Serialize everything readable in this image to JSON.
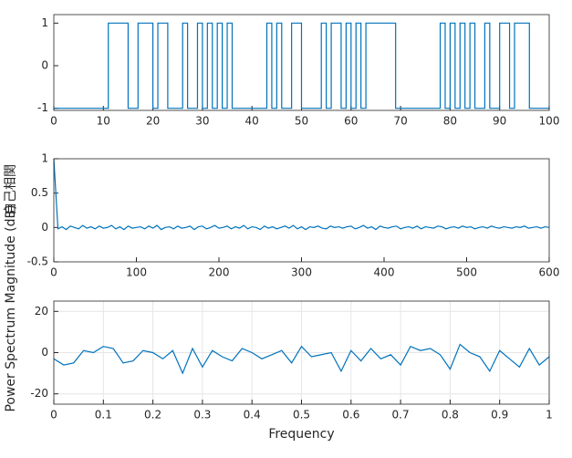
{
  "chart_data": [
    {
      "type": "step",
      "x": [
        0,
        1,
        2,
        3,
        4,
        5,
        6,
        7,
        8,
        9,
        10,
        11,
        12,
        13,
        14,
        15,
        16,
        17,
        18,
        19,
        20,
        21,
        22,
        23,
        24,
        25,
        26,
        27,
        28,
        29,
        30,
        31,
        32,
        33,
        34,
        35,
        36,
        37,
        38,
        39,
        40,
        41,
        42,
        43,
        44,
        45,
        46,
        47,
        48,
        49,
        50,
        51,
        52,
        53,
        54,
        55,
        56,
        57,
        58,
        59,
        60,
        61,
        62,
        63,
        64,
        65,
        66,
        67,
        68,
        69,
        70,
        71,
        72,
        73,
        74,
        75,
        76,
        77,
        78,
        79,
        80,
        81,
        82,
        83,
        84,
        85,
        86,
        87,
        88,
        89,
        90,
        91,
        92,
        93,
        94,
        95,
        96,
        97,
        98,
        99,
        100
      ],
      "series": [
        {
          "color": "#0072bd",
          "values": [
            -1,
            -1,
            -1,
            -1,
            -1,
            -1,
            -1,
            -1,
            -1,
            -1,
            -1,
            1,
            1,
            1,
            1,
            -1,
            -1,
            1,
            1,
            1,
            -1,
            1,
            1,
            -1,
            -1,
            -1,
            1,
            -1,
            -1,
            1,
            -1,
            1,
            -1,
            1,
            -1,
            1,
            -1,
            -1,
            -1,
            -1,
            -1,
            -1,
            -1,
            1,
            -1,
            1,
            -1,
            -1,
            1,
            1,
            -1,
            -1,
            -1,
            -1,
            1,
            -1,
            1,
            1,
            -1,
            1,
            -1,
            1,
            -1,
            1,
            1,
            1,
            1,
            1,
            1,
            -1,
            -1,
            -1,
            -1,
            -1,
            -1,
            -1,
            -1,
            -1,
            1,
            -1,
            1,
            -1,
            1,
            -1,
            1,
            -1,
            -1,
            1,
            -1,
            -1,
            1,
            1,
            -1,
            1,
            1,
            1,
            -1,
            -1,
            -1,
            -1,
            -1
          ]
        }
      ],
      "xlim": [
        0,
        100
      ],
      "xticks": [
        0,
        10,
        20,
        30,
        40,
        50,
        60,
        70,
        80,
        90,
        100
      ],
      "ylim": [
        -1.05,
        1.2
      ],
      "yticks": [
        -1,
        0,
        1
      ],
      "grid": false
    },
    {
      "type": "line",
      "ylabel": "自己相関",
      "x": [
        0,
        5,
        10,
        15,
        20,
        25,
        30,
        35,
        40,
        45,
        50,
        55,
        60,
        65,
        70,
        75,
        80,
        85,
        90,
        95,
        100,
        105,
        110,
        115,
        120,
        125,
        130,
        135,
        140,
        145,
        150,
        155,
        160,
        165,
        170,
        175,
        180,
        185,
        190,
        195,
        200,
        205,
        210,
        215,
        220,
        225,
        230,
        235,
        240,
        245,
        250,
        255,
        260,
        265,
        270,
        275,
        280,
        285,
        290,
        295,
        300,
        305,
        310,
        315,
        320,
        325,
        330,
        335,
        340,
        345,
        350,
        355,
        360,
        365,
        370,
        375,
        380,
        385,
        390,
        395,
        400,
        405,
        410,
        415,
        420,
        425,
        430,
        435,
        440,
        445,
        450,
        455,
        460,
        465,
        470,
        475,
        480,
        485,
        490,
        495,
        500,
        505,
        510,
        515,
        520,
        525,
        530,
        535,
        540,
        545,
        550,
        555,
        560,
        565,
        570,
        575,
        580,
        585,
        590,
        595,
        600
      ],
      "series": [
        {
          "color": "#0072bd",
          "values": [
            1,
            -0.02,
            0.01,
            -0.03,
            0.02,
            0.0,
            -0.02,
            0.03,
            -0.01,
            0.01,
            -0.02,
            0.02,
            -0.01,
            0.0,
            0.03,
            -0.02,
            0.01,
            -0.03,
            0.02,
            -0.01,
            0.0,
            0.01,
            -0.02,
            0.02,
            -0.01,
            0.03,
            -0.03,
            0.0,
            0.01,
            -0.02,
            0.02,
            -0.01,
            0.0,
            0.02,
            -0.03,
            0.01,
            0.02,
            -0.02,
            0.0,
            0.03,
            -0.01,
            0.0,
            0.02,
            -0.02,
            0.01,
            -0.01,
            0.03,
            -0.02,
            0.01,
            0.0,
            -0.03,
            0.02,
            -0.01,
            0.01,
            -0.02,
            0.0,
            0.02,
            -0.01,
            0.03,
            -0.02,
            0.01,
            -0.03,
            0.01,
            0.0,
            0.02,
            -0.01,
            -0.02,
            0.02,
            0.0,
            0.01,
            -0.01,
            0.01,
            0.02,
            -0.02,
            0.0,
            0.03,
            -0.01,
            0.01,
            -0.03,
            0.02,
            0.0,
            -0.01,
            0.01,
            0.02,
            -0.02,
            0.0,
            0.01,
            -0.01,
            0.02,
            -0.02,
            0.01,
            0.0,
            -0.01,
            0.02,
            0.01,
            -0.02,
            0.0,
            0.01,
            -0.01,
            0.02,
            0.0,
            0.01,
            -0.02,
            0.0,
            0.01,
            -0.01,
            0.02,
            0.0,
            -0.01,
            0.01,
            0.0,
            -0.01,
            0.01,
            0.0,
            0.02,
            -0.01,
            0.0,
            0.01,
            -0.01,
            0.01,
            0.0
          ]
        }
      ],
      "xlim": [
        0,
        600
      ],
      "xticks": [
        0,
        100,
        200,
        300,
        400,
        500,
        600
      ],
      "ylim": [
        -0.5,
        1
      ],
      "yticks": [
        -0.5,
        0,
        0.5,
        1
      ],
      "grid": false
    },
    {
      "type": "line",
      "xlabel": "Frequency",
      "ylabel": "Power Spectrum Magnitude (dB)",
      "x": [
        0,
        0.02,
        0.04,
        0.06,
        0.08,
        0.1,
        0.12,
        0.14,
        0.16,
        0.18,
        0.2,
        0.22,
        0.24,
        0.26,
        0.28,
        0.3,
        0.32,
        0.34,
        0.36,
        0.38,
        0.4,
        0.42,
        0.44,
        0.46,
        0.48,
        0.5,
        0.52,
        0.54,
        0.56,
        0.58,
        0.6,
        0.62,
        0.64,
        0.66,
        0.68,
        0.7,
        0.72,
        0.74,
        0.76,
        0.78,
        0.8,
        0.82,
        0.84,
        0.86,
        0.88,
        0.9,
        0.92,
        0.94,
        0.96,
        0.98,
        1
      ],
      "series": [
        {
          "color": "#0072bd",
          "values": [
            -3,
            -6,
            -5,
            1,
            0,
            3,
            2,
            -5,
            -4,
            1,
            0,
            -3,
            1,
            -10,
            2,
            -7,
            1,
            -2,
            -4,
            2,
            0,
            -3,
            -1,
            1,
            -5,
            3,
            -2,
            -1,
            0,
            -9,
            1,
            -4,
            2,
            -3,
            -1,
            -6,
            3,
            1,
            2,
            -1,
            -8,
            4,
            0,
            -2,
            -9,
            1,
            -3,
            -7,
            2,
            -6,
            -2
          ]
        }
      ],
      "xlim": [
        0,
        1
      ],
      "xticks": [
        0,
        0.1,
        0.2,
        0.3,
        0.4,
        0.5,
        0.6,
        0.7,
        0.8,
        0.9,
        1
      ],
      "ylim": [
        -25,
        25
      ],
      "yticks": [
        -20,
        0,
        20
      ],
      "grid": true
    }
  ]
}
